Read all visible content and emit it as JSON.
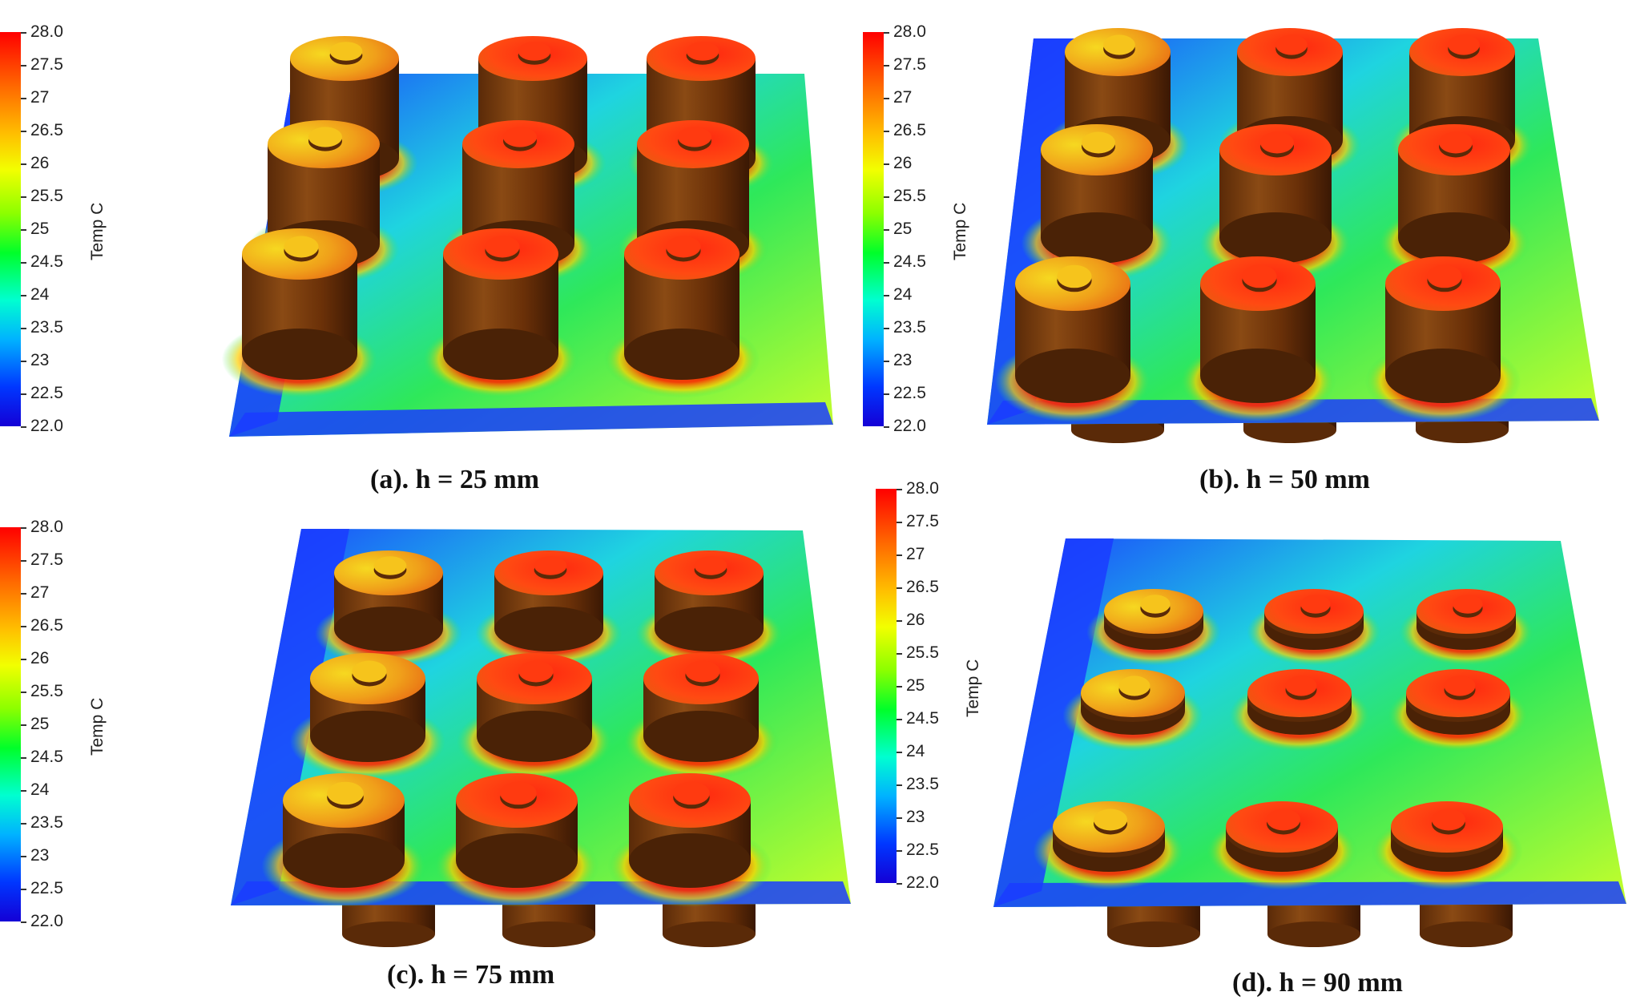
{
  "colorbar": {
    "title": "Temp C",
    "ticks": [
      "28.0",
      "27.5",
      "27",
      "26.5",
      "26",
      "25.5",
      "25",
      "24.5",
      "24",
      "23.5",
      "23",
      "22.5",
      "22.0"
    ]
  },
  "panels": [
    {
      "caption": "(a). h = 25 mm"
    },
    {
      "caption": "(b). h = 50 mm"
    },
    {
      "caption": "(c). h = 75 mm"
    },
    {
      "caption": "(d). h = 90 mm"
    }
  ],
  "colors": {
    "plate_cold": "#1a3cff",
    "plate_mid": "#22e86a",
    "plate_warm": "#b9ff2a",
    "cylinder_side": "#7a3a10",
    "cylinder_top_hot": "#ff3a10",
    "cylinder_top_warm": "#f4c21a"
  }
}
